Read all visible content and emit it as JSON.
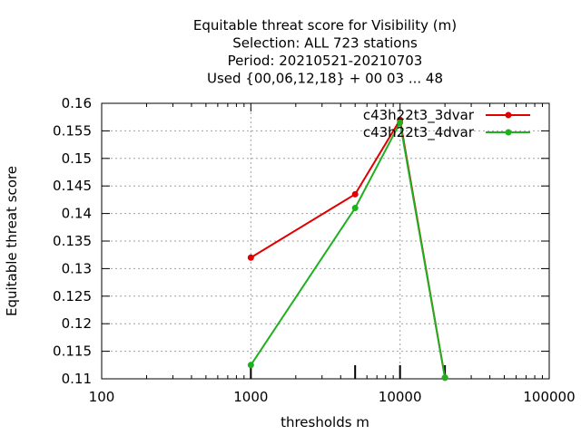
{
  "chart_data": {
    "type": "line",
    "title_lines": [
      "Equitable threat score  for Visibility (m)",
      "Selection: ALL    723 stations",
      "Period: 20210521-20210703",
      "Used {00,06,12,18} + 00 03 ... 48"
    ],
    "xlabel": "thresholds m",
    "ylabel": "Equitable threat score",
    "xscale": "log",
    "xlim": [
      100,
      100000
    ],
    "ylim": [
      0.11,
      0.16
    ],
    "xticks": [
      100,
      1000,
      10000,
      100000
    ],
    "xtick_labels": [
      "100",
      "1000",
      "10000",
      "100000"
    ],
    "yticks": [
      0.11,
      0.115,
      0.12,
      0.125,
      0.13,
      0.135,
      0.14,
      0.145,
      0.15,
      0.155,
      0.16
    ],
    "ytick_labels": [
      "0.11",
      "0.115",
      "0.12",
      "0.125",
      "0.13",
      "0.135",
      "0.14",
      "0.145",
      "0.15",
      "0.155",
      "0.16"
    ],
    "threshold_markers": [
      1000,
      5000,
      10000,
      20000
    ],
    "grid": true,
    "legend_position": "top-right",
    "series": [
      {
        "name": "c43h22t3_3dvar",
        "color": "#e00000",
        "x": [
          1000,
          5000,
          10000,
          20000
        ],
        "y": [
          0.132,
          0.1435,
          0.157,
          0.1102
        ]
      },
      {
        "name": "c43h22t3_4dvar",
        "color": "#1fb01f",
        "x": [
          1000,
          5000,
          10000,
          20000
        ],
        "y": [
          0.1125,
          0.141,
          0.1565,
          0.1102
        ]
      }
    ]
  }
}
